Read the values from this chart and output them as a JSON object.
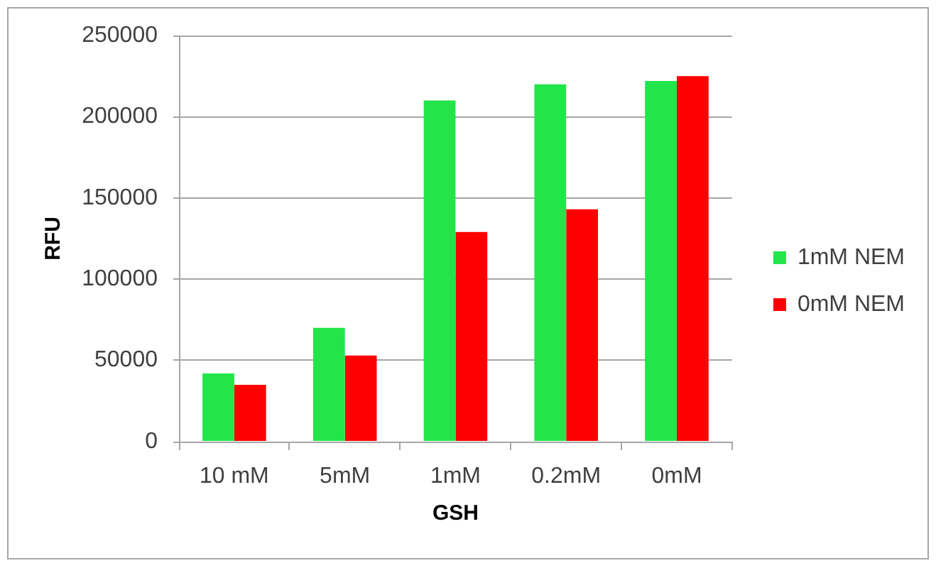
{
  "chart_data": {
    "type": "bar",
    "categories": [
      "10 mM",
      "5mM",
      "1mM",
      "0.2mM",
      "0mM"
    ],
    "series": [
      {
        "name": "1mM NEM",
        "color": "#22e54a",
        "values": [
          42000,
          70000,
          210000,
          220000,
          222000
        ]
      },
      {
        "name": "0mM NEM",
        "color": "#ff0000",
        "values": [
          35000,
          53000,
          129000,
          143000,
          225000
        ]
      }
    ],
    "xlabel": "GSH",
    "ylabel": "RFU",
    "ylim": [
      0,
      250000
    ],
    "yticks": [
      0,
      50000,
      100000,
      150000,
      200000,
      250000
    ],
    "grid": "y",
    "legend": "right"
  }
}
